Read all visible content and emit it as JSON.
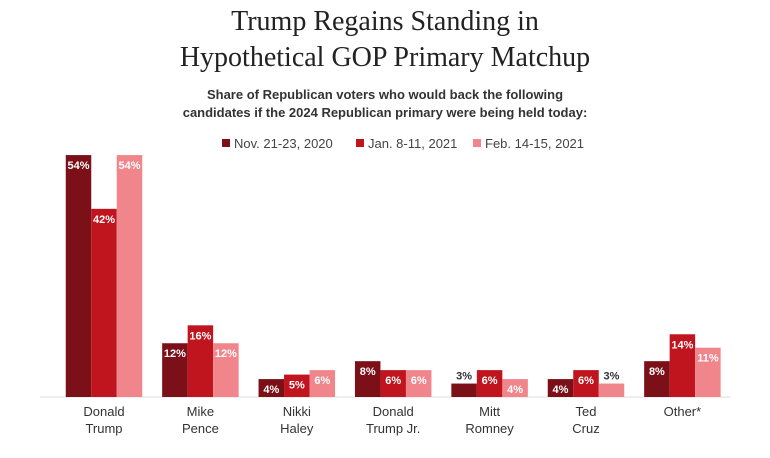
{
  "chart_data": {
    "type": "bar",
    "title": [
      "Trump Regains Standing in",
      "Hypothetical GOP Primary Matchup"
    ],
    "subtitle": [
      "Share of Republican voters who would back the following",
      "candidates if the 2024 Republican primary were being held today:"
    ],
    "categories": [
      [
        "Donald",
        "Trump"
      ],
      [
        "Mike",
        "Pence"
      ],
      [
        "Nikki",
        "Haley"
      ],
      [
        "Donald",
        "Trump Jr."
      ],
      [
        "Mitt",
        "Romney"
      ],
      [
        "Ted",
        "Cruz"
      ],
      [
        "Other*"
      ]
    ],
    "series": [
      {
        "name": "Nov. 21-23, 2020",
        "color": "#7b1018",
        "values": [
          54,
          12,
          4,
          8,
          3,
          4,
          8
        ],
        "value_labels": [
          "54%",
          "12%",
          "4%",
          "8%",
          "3%",
          "4%",
          "8%"
        ]
      },
      {
        "name": "Jan. 8-11, 2021",
        "color": "#c0141e",
        "values": [
          42,
          16,
          5,
          6,
          6,
          6,
          14
        ],
        "value_labels": [
          "42%",
          "16%",
          "5%",
          "6%",
          "6%",
          "6%",
          "14%"
        ]
      },
      {
        "name": "Feb. 14-15, 2021",
        "color": "#f0868c",
        "values": [
          54,
          12,
          6,
          6,
          4,
          3,
          11
        ],
        "value_labels": [
          "54%",
          "12%",
          "6%",
          "6%",
          "4%",
          "3%",
          "11%"
        ]
      }
    ]
  }
}
